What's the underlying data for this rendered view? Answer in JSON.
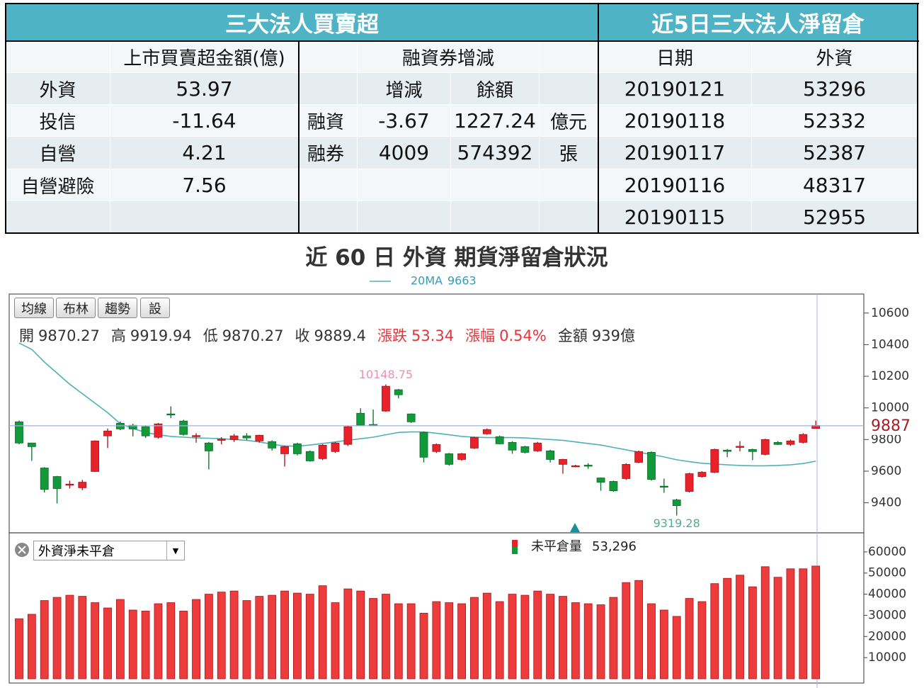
{
  "institutional": {
    "title": "三大法人買賣超",
    "column": "上市買賣超金額(億)",
    "rows": [
      [
        "外資",
        53.97
      ],
      [
        "投信",
        -11.64
      ],
      [
        "自營",
        4.21
      ],
      [
        "自營避險",
        7.56
      ]
    ]
  },
  "margin": {
    "title": "融資券增減",
    "columns": [
      "增減",
      "餘額"
    ],
    "rows": [
      [
        "融資",
        -3.67,
        1227.24,
        "億元"
      ],
      [
        "融券",
        4009,
        574392,
        "張"
      ]
    ]
  },
  "net_position": {
    "title": "近5日三大法人淨留倉",
    "columns": [
      "日期",
      "外資"
    ],
    "rows": [
      [
        "20190121",
        53296
      ],
      [
        "20190118",
        52332
      ],
      [
        "20190117",
        52387
      ],
      [
        "20190116",
        48317
      ],
      [
        "20190115",
        52955
      ]
    ]
  },
  "heading": "近 60 日 外資 期貨淨留倉狀況",
  "chart_panel": {
    "buttons": [
      "均線",
      "布林",
      "趨勢",
      "設"
    ],
    "quote": [
      {
        "label": "開",
        "value": 9870.27
      },
      {
        "label": "高",
        "value": 9919.94
      },
      {
        "label": "低",
        "value": 9870.27
      },
      {
        "label": "收",
        "value": 9889.4
      },
      {
        "label": "漲跌",
        "value": 53.34,
        "color": "#e8333b"
      },
      {
        "label": "漲幅",
        "value": 0.54,
        "value_label": "0.54%",
        "color": "#e8333b"
      },
      {
        "label": "金額",
        "value": 939,
        "value_label": "939億"
      }
    ],
    "indicator_select": "外資淨未平倉"
  },
  "chart_data": [
    {
      "type": "candlestick",
      "open": [
        9912,
        9778,
        9620,
        9566,
        9512,
        9495,
        9598,
        9823,
        9903,
        9890,
        9881,
        9814,
        9962,
        9917,
        9818,
        9778,
        9795,
        9800,
        9823,
        9791,
        9787,
        9710,
        9773,
        9724,
        9679,
        9724,
        9769,
        9966,
        9895,
        9980,
        10115,
        9962,
        9845,
        9724,
        9710,
        9674,
        9746,
        9836,
        9818,
        9782,
        9755,
        9728,
        9728,
        9643,
        9628,
        9638,
        9557,
        9535,
        9553,
        9656,
        9719,
        9505,
        9418,
        9472,
        9566,
        9593,
        9733,
        9752,
        9737,
        9706,
        9782,
        9769,
        9782,
        9870.27
      ],
      "high": [
        9920,
        9780,
        9625,
        9570,
        9540,
        9545,
        9795,
        9870,
        9915,
        9900,
        9890,
        9905,
        10010,
        9925,
        9840,
        9785,
        9815,
        9835,
        9840,
        9830,
        9795,
        9760,
        9780,
        9730,
        9770,
        9785,
        9885,
        9998,
        9990,
        10148.75,
        10120,
        9965,
        9850,
        9775,
        9715,
        9715,
        9818,
        9870,
        9825,
        9790,
        9760,
        9785,
        9735,
        9678,
        9640,
        9650,
        9560,
        9540,
        9650,
        9730,
        9725,
        9553,
        9425,
        9590,
        9600,
        9742,
        9740,
        9790,
        9742,
        9805,
        9790,
        9800,
        9840,
        9919.94
      ],
      "low": [
        9770,
        9665,
        9465,
        9396,
        9490,
        9480,
        9595,
        9746,
        9860,
        9820,
        9810,
        9805,
        9935,
        9825,
        9780,
        9611,
        9770,
        9785,
        9795,
        9780,
        9730,
        9629,
        9700,
        9660,
        9670,
        9715,
        9760,
        9885,
        9885,
        9975,
        10060,
        9905,
        9655,
        9715,
        9635,
        9665,
        9740,
        9830,
        9770,
        9710,
        9712,
        9722,
        9655,
        9584,
        9625,
        9615,
        9476,
        9470,
        9545,
        9650,
        9540,
        9463,
        9319.28,
        9465,
        9560,
        9588,
        9688,
        9725,
        9670,
        9700,
        9765,
        9760,
        9775,
        9870.27
      ],
      "close": [
        9778,
        9755,
        9485,
        9490,
        9518,
        9530,
        9791,
        9854,
        9867,
        9867,
        9823,
        9899,
        9955,
        9832,
        9825,
        9728,
        9802,
        9823,
        9810,
        9827,
        9746,
        9755,
        9710,
        9665,
        9764,
        9778,
        9881,
        9890,
        9890,
        10137,
        10083,
        9912,
        9688,
        9769,
        9643,
        9710,
        9814,
        9863,
        9773,
        9733,
        9719,
        9778,
        9674,
        9674,
        9634,
        9634,
        9530,
        9476,
        9643,
        9724,
        9548,
        9500,
        9382,
        9584,
        9593,
        9737,
        9725,
        9757,
        9724,
        9800,
        9769,
        9791,
        9832,
        9889.4
      ],
      "up_color": "#e8212a",
      "down_color": "#129a3a",
      "ma": {
        "name": "20MA",
        "color": "#4fb0b8",
        "values": [
          10410,
          10370,
          10290,
          10220,
          10150,
          10090,
          10030,
          9970,
          9900,
          9870,
          9845,
          9830,
          9820,
          9815,
          9810,
          9808,
          9805,
          9800,
          9795,
          9785,
          9770,
          9760,
          9758,
          9765,
          9775,
          9785,
          9795,
          9805,
          9815,
          9830,
          9845,
          9848,
          9848,
          9840,
          9830,
          9820,
          9815,
          9812,
          9812,
          9812,
          9810,
          9805,
          9800,
          9795,
          9785,
          9775,
          9765,
          9750,
          9735,
          9720,
          9705,
          9690,
          9672,
          9660,
          9650,
          9645,
          9640,
          9636,
          9634,
          9634,
          9636,
          9640,
          9648,
          9663
        ]
      },
      "current_price": 9887,
      "ylim": [
        9210,
        10720
      ],
      "yticks": [
        9400,
        9600,
        9800,
        10000,
        10200,
        10400,
        10600
      ]
    },
    {
      "type": "bar",
      "series": [
        {
          "name": "未平倉量",
          "color": "#ee3b3b",
          "values": [
            28400,
            30500,
            37000,
            38500,
            39500,
            39000,
            36000,
            33500,
            37500,
            32500,
            32000,
            35500,
            36000,
            32000,
            37500,
            40000,
            41000,
            41500,
            37000,
            39000,
            39500,
            41500,
            40500,
            40000,
            44000,
            36000,
            42500,
            41500,
            38000,
            40000,
            35500,
            35500,
            31000,
            36500,
            36000,
            35500,
            38500,
            40500,
            36500,
            40000,
            39500,
            41500,
            40000,
            39000,
            36000,
            35500,
            35000,
            38500,
            45500,
            46500,
            35500,
            32500,
            29500,
            38000,
            36500,
            45000,
            47500,
            49000,
            43500,
            53000,
            48000,
            52000,
            52000,
            53296
          ]
        }
      ],
      "legend_value": {
        "value": 53296,
        "label": "53,296"
      },
      "ylim": [
        0,
        68000
      ],
      "yticks": [
        10000,
        20000,
        30000,
        40000,
        50000,
        60000
      ]
    }
  ]
}
